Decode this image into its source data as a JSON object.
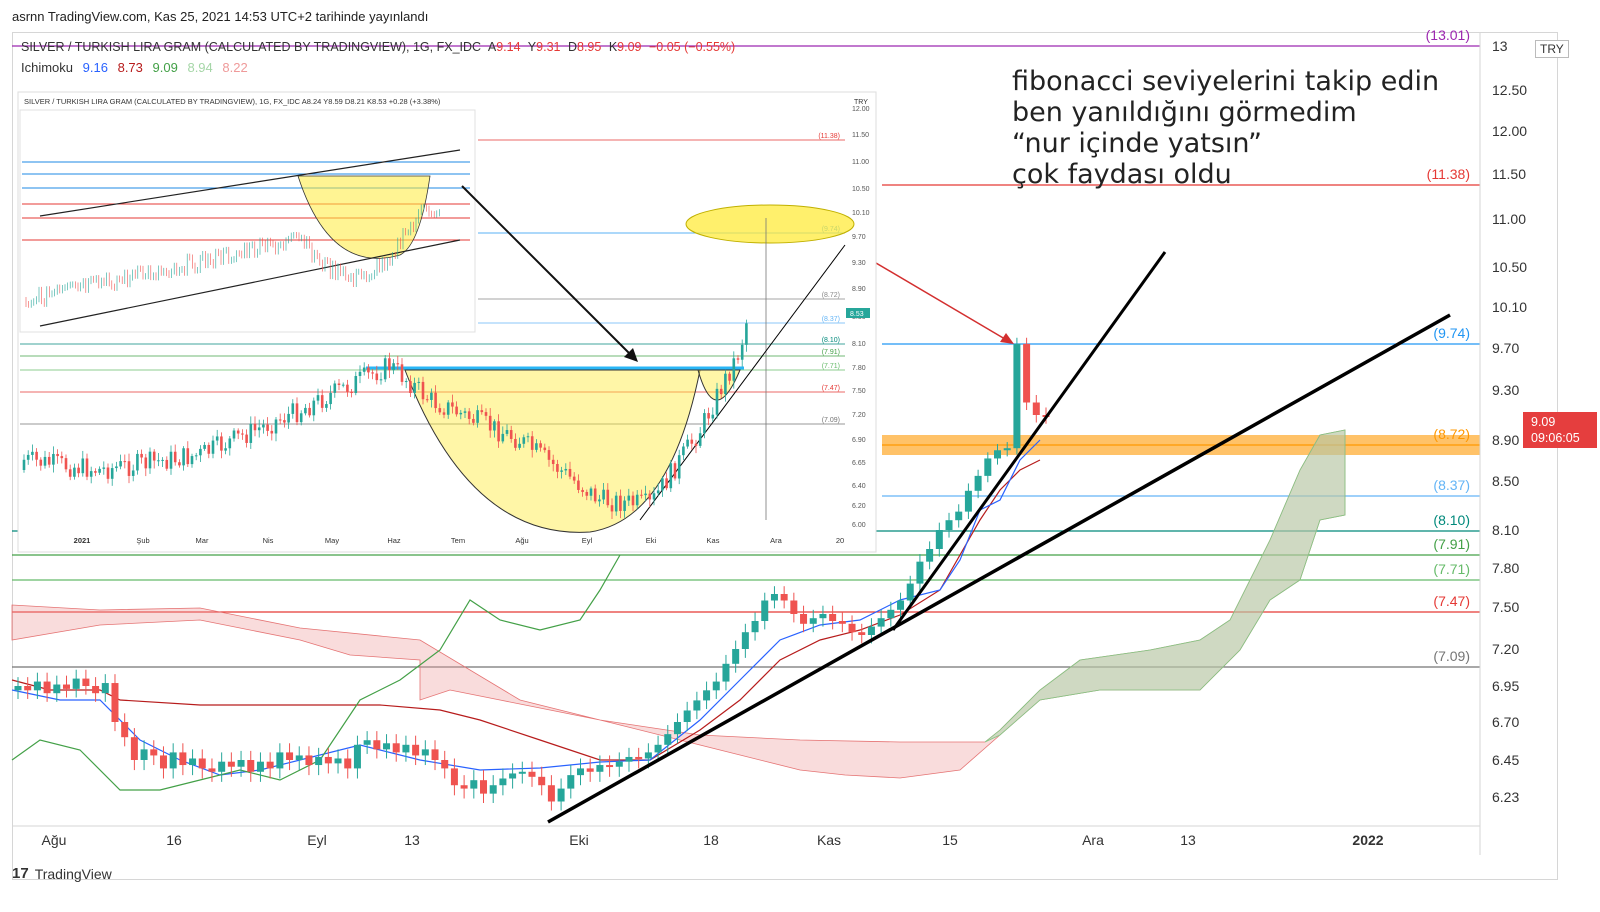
{
  "header": {
    "published": "asrnn TradingView.com, Kas 25, 2021 14:53 UTC+2 tarihinde yayınlandı"
  },
  "legend": {
    "symbol": "SILVER / TURKISH LIRA GRAM (CALCULATED BY TRADINGVIEW), 1G, FX_IDC",
    "ohlc": [
      {
        "label": "A",
        "value": "9.14"
      },
      {
        "label": "Y",
        "value": "9.31"
      },
      {
        "label": "D",
        "value": "8.95"
      },
      {
        "label": "K",
        "value": "9.09"
      }
    ],
    "change": "−0.05 (−0.55%)",
    "indicator": "Ichimoku",
    "indicator_values": [
      "9.16",
      "8.73",
      "9.09",
      "8.94",
      "8.22"
    ],
    "indicator_colors": [
      "#2962ff",
      "#b71c1c",
      "#43a047",
      "#a5d6a7",
      "#ef9a9a"
    ]
  },
  "currency": "TRY",
  "note": {
    "lines": [
      "fibonacci seviyelerini takip edin",
      "ben yanıldığını görmedim",
      "“nur içinde yatsın”",
      "çok faydası oldu"
    ]
  },
  "price_badge": {
    "price": "9.09",
    "countdown": "09:06:05",
    "color": "#e53e3e"
  },
  "footer": {
    "brand": "TradingView",
    "logo": "17"
  },
  "colors": {
    "up": "#26a69a",
    "down": "#ef5350",
    "zone": "#ffb74d",
    "ellipse": "#ffeb3b"
  },
  "inset": {
    "symbol": "SILVER / TURKISH LIRA GRAM (CALCULATED BY TRADINGVIEW), 1G, FX_IDC",
    "ohlc_text": "A8.24 Y8.59 D8.21 K8.53 +0.28 (+3.38%)",
    "currency": "TRY",
    "price_tag": "8.53",
    "y_ticks": [
      "12.00",
      "11.50",
      "11.00",
      "10.50",
      "10.10",
      "9.70",
      "9.30",
      "8.90",
      "8.50",
      "8.10",
      "7.80",
      "7.50",
      "7.20",
      "6.90",
      "6.65",
      "6.40",
      "6.20",
      "6.00"
    ],
    "fib_labels": [
      "(11.38)",
      "(9.74)",
      "(8.72)",
      "(8.37)",
      "(8.10)",
      "(7.91)",
      "(7.71)",
      "(7.47)",
      "(7.09)"
    ],
    "x_ticks": [
      "2021",
      "Şub",
      "Mar",
      "Nis",
      "May",
      "Haz",
      "Tem",
      "Ağu",
      "Eyl",
      "Eki",
      "Kas",
      "Ara",
      "20"
    ]
  },
  "chart_data": {
    "type": "candlestick",
    "title": "SILVER / TURKISH LIRA GRAM (CALCULATED BY TRADINGVIEW), 1G, FX_IDC",
    "y_ticks": [
      "13",
      "12.50",
      "12.00",
      "11.50",
      "11.00",
      "10.50",
      "10.10",
      "9.70",
      "9.30",
      "8.90",
      "8.50",
      "8.10",
      "7.80",
      "7.50",
      "7.20",
      "6.95",
      "6.70",
      "6.45",
      "6.23"
    ],
    "x_ticks": [
      "Ağu",
      "16",
      "Eyl",
      "13",
      "Eki",
      "18",
      "Kas",
      "15",
      "Ara",
      "13",
      "2022"
    ],
    "fibonacci_levels": [
      {
        "label": "(13.01)",
        "value": 13.01,
        "color": "#9c27b0"
      },
      {
        "label": "(11.38)",
        "value": 11.38,
        "color": "#e53935"
      },
      {
        "label": "(9.74)",
        "value": 9.74,
        "color": "#2196f3"
      },
      {
        "label": "(8.72)",
        "value": 8.72,
        "color": "#ff9800"
      },
      {
        "label": "(8.37)",
        "value": 8.37,
        "color": "#64b5f6"
      },
      {
        "label": "(8.10)",
        "value": 8.1,
        "color": "#00897b"
      },
      {
        "label": "(7.91)",
        "value": 7.91,
        "color": "#43a047"
      },
      {
        "label": "(7.71)",
        "value": 7.71,
        "color": "#66bb6a"
      },
      {
        "label": "(7.47)",
        "value": 7.47,
        "color": "#e53935"
      },
      {
        "label": "(7.09)",
        "value": 7.09,
        "color": "#757575"
      }
    ],
    "last_price": 9.09,
    "candles_close": [
      6.95,
      6.92,
      6.98,
      6.9,
      6.96,
      6.93,
      7.0,
      6.95,
      6.9,
      6.97,
      6.7,
      6.6,
      6.45,
      6.52,
      6.48,
      6.4,
      6.5,
      6.42,
      6.46,
      6.4,
      6.38,
      6.44,
      6.41,
      6.45,
      6.38,
      6.44,
      6.4,
      6.5,
      6.45,
      6.48,
      6.42,
      6.47,
      6.43,
      6.46,
      6.4,
      6.55,
      6.58,
      6.52,
      6.56,
      6.5,
      6.55,
      6.48,
      6.52,
      6.45,
      6.4,
      6.3,
      6.28,
      6.33,
      6.25,
      6.3,
      6.34,
      6.37,
      6.38,
      6.35,
      6.3,
      6.2,
      6.28,
      6.36,
      6.4,
      6.38,
      6.42,
      6.41,
      6.44,
      6.47,
      6.46,
      6.5,
      6.55,
      6.62,
      6.7,
      6.78,
      6.85,
      6.92,
      6.98,
      7.1,
      7.2,
      7.32,
      7.4,
      7.55,
      7.6,
      7.55,
      7.45,
      7.38,
      7.42,
      7.45,
      7.4,
      7.38,
      7.32,
      7.3,
      7.36,
      7.42,
      7.48,
      7.55,
      7.68,
      7.85,
      7.95,
      8.1,
      8.18,
      8.25,
      8.42,
      8.55,
      8.72,
      8.8,
      8.82,
      9.74,
      9.2,
      9.1,
      9.09
    ]
  }
}
